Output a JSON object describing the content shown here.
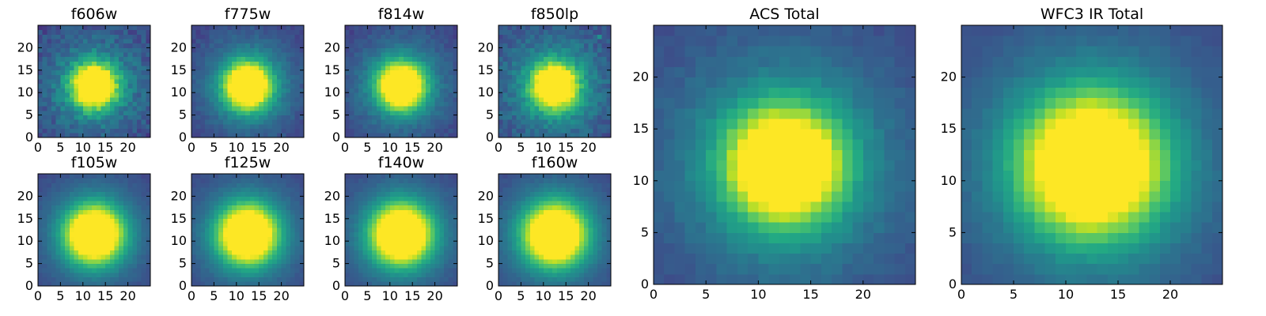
{
  "chart_data": [
    {
      "type": "heatmap",
      "title": "f606w",
      "xlim": [
        0,
        25
      ],
      "ylim": [
        0,
        25
      ],
      "x_ticks": [
        0,
        5,
        10,
        15,
        20
      ],
      "y_ticks": [
        0,
        5,
        10,
        15,
        20
      ],
      "peak_x": 12.5,
      "peak_y": 11.5,
      "core_radius": 3.2,
      "background_level": 0.18,
      "noise_level": 0.08,
      "colormap": "viridis"
    },
    {
      "type": "heatmap",
      "title": "f775w",
      "xlim": [
        0,
        25
      ],
      "ylim": [
        0,
        25
      ],
      "x_ticks": [
        0,
        5,
        10,
        15,
        20
      ],
      "y_ticks": [
        0,
        5,
        10,
        15,
        20
      ],
      "peak_x": 12.5,
      "peak_y": 11.5,
      "core_radius": 3.4,
      "background_level": 0.15,
      "noise_level": 0.04,
      "colormap": "viridis"
    },
    {
      "type": "heatmap",
      "title": "f814w",
      "xlim": [
        0,
        25
      ],
      "ylim": [
        0,
        25
      ],
      "x_ticks": [
        0,
        5,
        10,
        15,
        20
      ],
      "y_ticks": [
        0,
        5,
        10,
        15,
        20
      ],
      "peak_x": 12.5,
      "peak_y": 11.5,
      "core_radius": 3.4,
      "background_level": 0.15,
      "noise_level": 0.04,
      "colormap": "viridis"
    },
    {
      "type": "heatmap",
      "title": "f850lp",
      "xlim": [
        0,
        25
      ],
      "ylim": [
        0,
        25
      ],
      "x_ticks": [
        0,
        5,
        10,
        15,
        20
      ],
      "y_ticks": [
        0,
        5,
        10,
        15,
        20
      ],
      "peak_x": 12.5,
      "peak_y": 11.5,
      "core_radius": 3.3,
      "background_level": 0.2,
      "noise_level": 0.07,
      "colormap": "viridis",
      "hot_pixel": {
        "x": 22.5,
        "y": 22.5,
        "level": 0.5
      }
    },
    {
      "type": "heatmap",
      "title": "f105w",
      "xlim": [
        0,
        25
      ],
      "ylim": [
        0,
        25
      ],
      "x_ticks": [
        0,
        5,
        10,
        15,
        20
      ],
      "y_ticks": [
        0,
        5,
        10,
        15,
        20
      ],
      "peak_x": 12.5,
      "peak_y": 11.5,
      "core_radius": 4.2,
      "background_level": 0.12,
      "noise_level": 0.02,
      "colormap": "viridis"
    },
    {
      "type": "heatmap",
      "title": "f125w",
      "xlim": [
        0,
        25
      ],
      "ylim": [
        0,
        25
      ],
      "x_ticks": [
        0,
        5,
        10,
        15,
        20
      ],
      "y_ticks": [
        0,
        5,
        10,
        15,
        20
      ],
      "peak_x": 12.5,
      "peak_y": 11.5,
      "core_radius": 4.3,
      "background_level": 0.12,
      "noise_level": 0.02,
      "colormap": "viridis"
    },
    {
      "type": "heatmap",
      "title": "f140w",
      "xlim": [
        0,
        25
      ],
      "ylim": [
        0,
        25
      ],
      "x_ticks": [
        0,
        5,
        10,
        15,
        20
      ],
      "y_ticks": [
        0,
        5,
        10,
        15,
        20
      ],
      "peak_x": 12.5,
      "peak_y": 11.5,
      "core_radius": 4.4,
      "background_level": 0.12,
      "noise_level": 0.02,
      "colormap": "viridis"
    },
    {
      "type": "heatmap",
      "title": "f160w",
      "xlim": [
        0,
        25
      ],
      "ylim": [
        0,
        25
      ],
      "x_ticks": [
        0,
        5,
        10,
        15,
        20
      ],
      "y_ticks": [
        0,
        5,
        10,
        15,
        20
      ],
      "peak_x": 12.5,
      "peak_y": 11.5,
      "core_radius": 4.5,
      "background_level": 0.12,
      "noise_level": 0.02,
      "colormap": "viridis"
    },
    {
      "type": "heatmap",
      "title": "ACS Total",
      "xlim": [
        0,
        25
      ],
      "ylim": [
        0,
        25
      ],
      "x_ticks": [
        0,
        5,
        10,
        15,
        20
      ],
      "y_ticks": [
        0,
        5,
        10,
        15,
        20
      ],
      "peak_x": 12.5,
      "peak_y": 11.5,
      "core_radius": 3.6,
      "background_level": 0.17,
      "noise_level": 0.03,
      "colormap": "viridis"
    },
    {
      "type": "heatmap",
      "title": "WFC3 IR Total",
      "xlim": [
        0,
        25
      ],
      "ylim": [
        0,
        25
      ],
      "x_ticks": [
        0,
        5,
        10,
        15,
        20
      ],
      "y_ticks": [
        0,
        5,
        10,
        15,
        20
      ],
      "peak_x": 12.5,
      "peak_y": 11.5,
      "core_radius": 4.4,
      "background_level": 0.13,
      "noise_level": 0.02,
      "colormap": "viridis"
    }
  ]
}
